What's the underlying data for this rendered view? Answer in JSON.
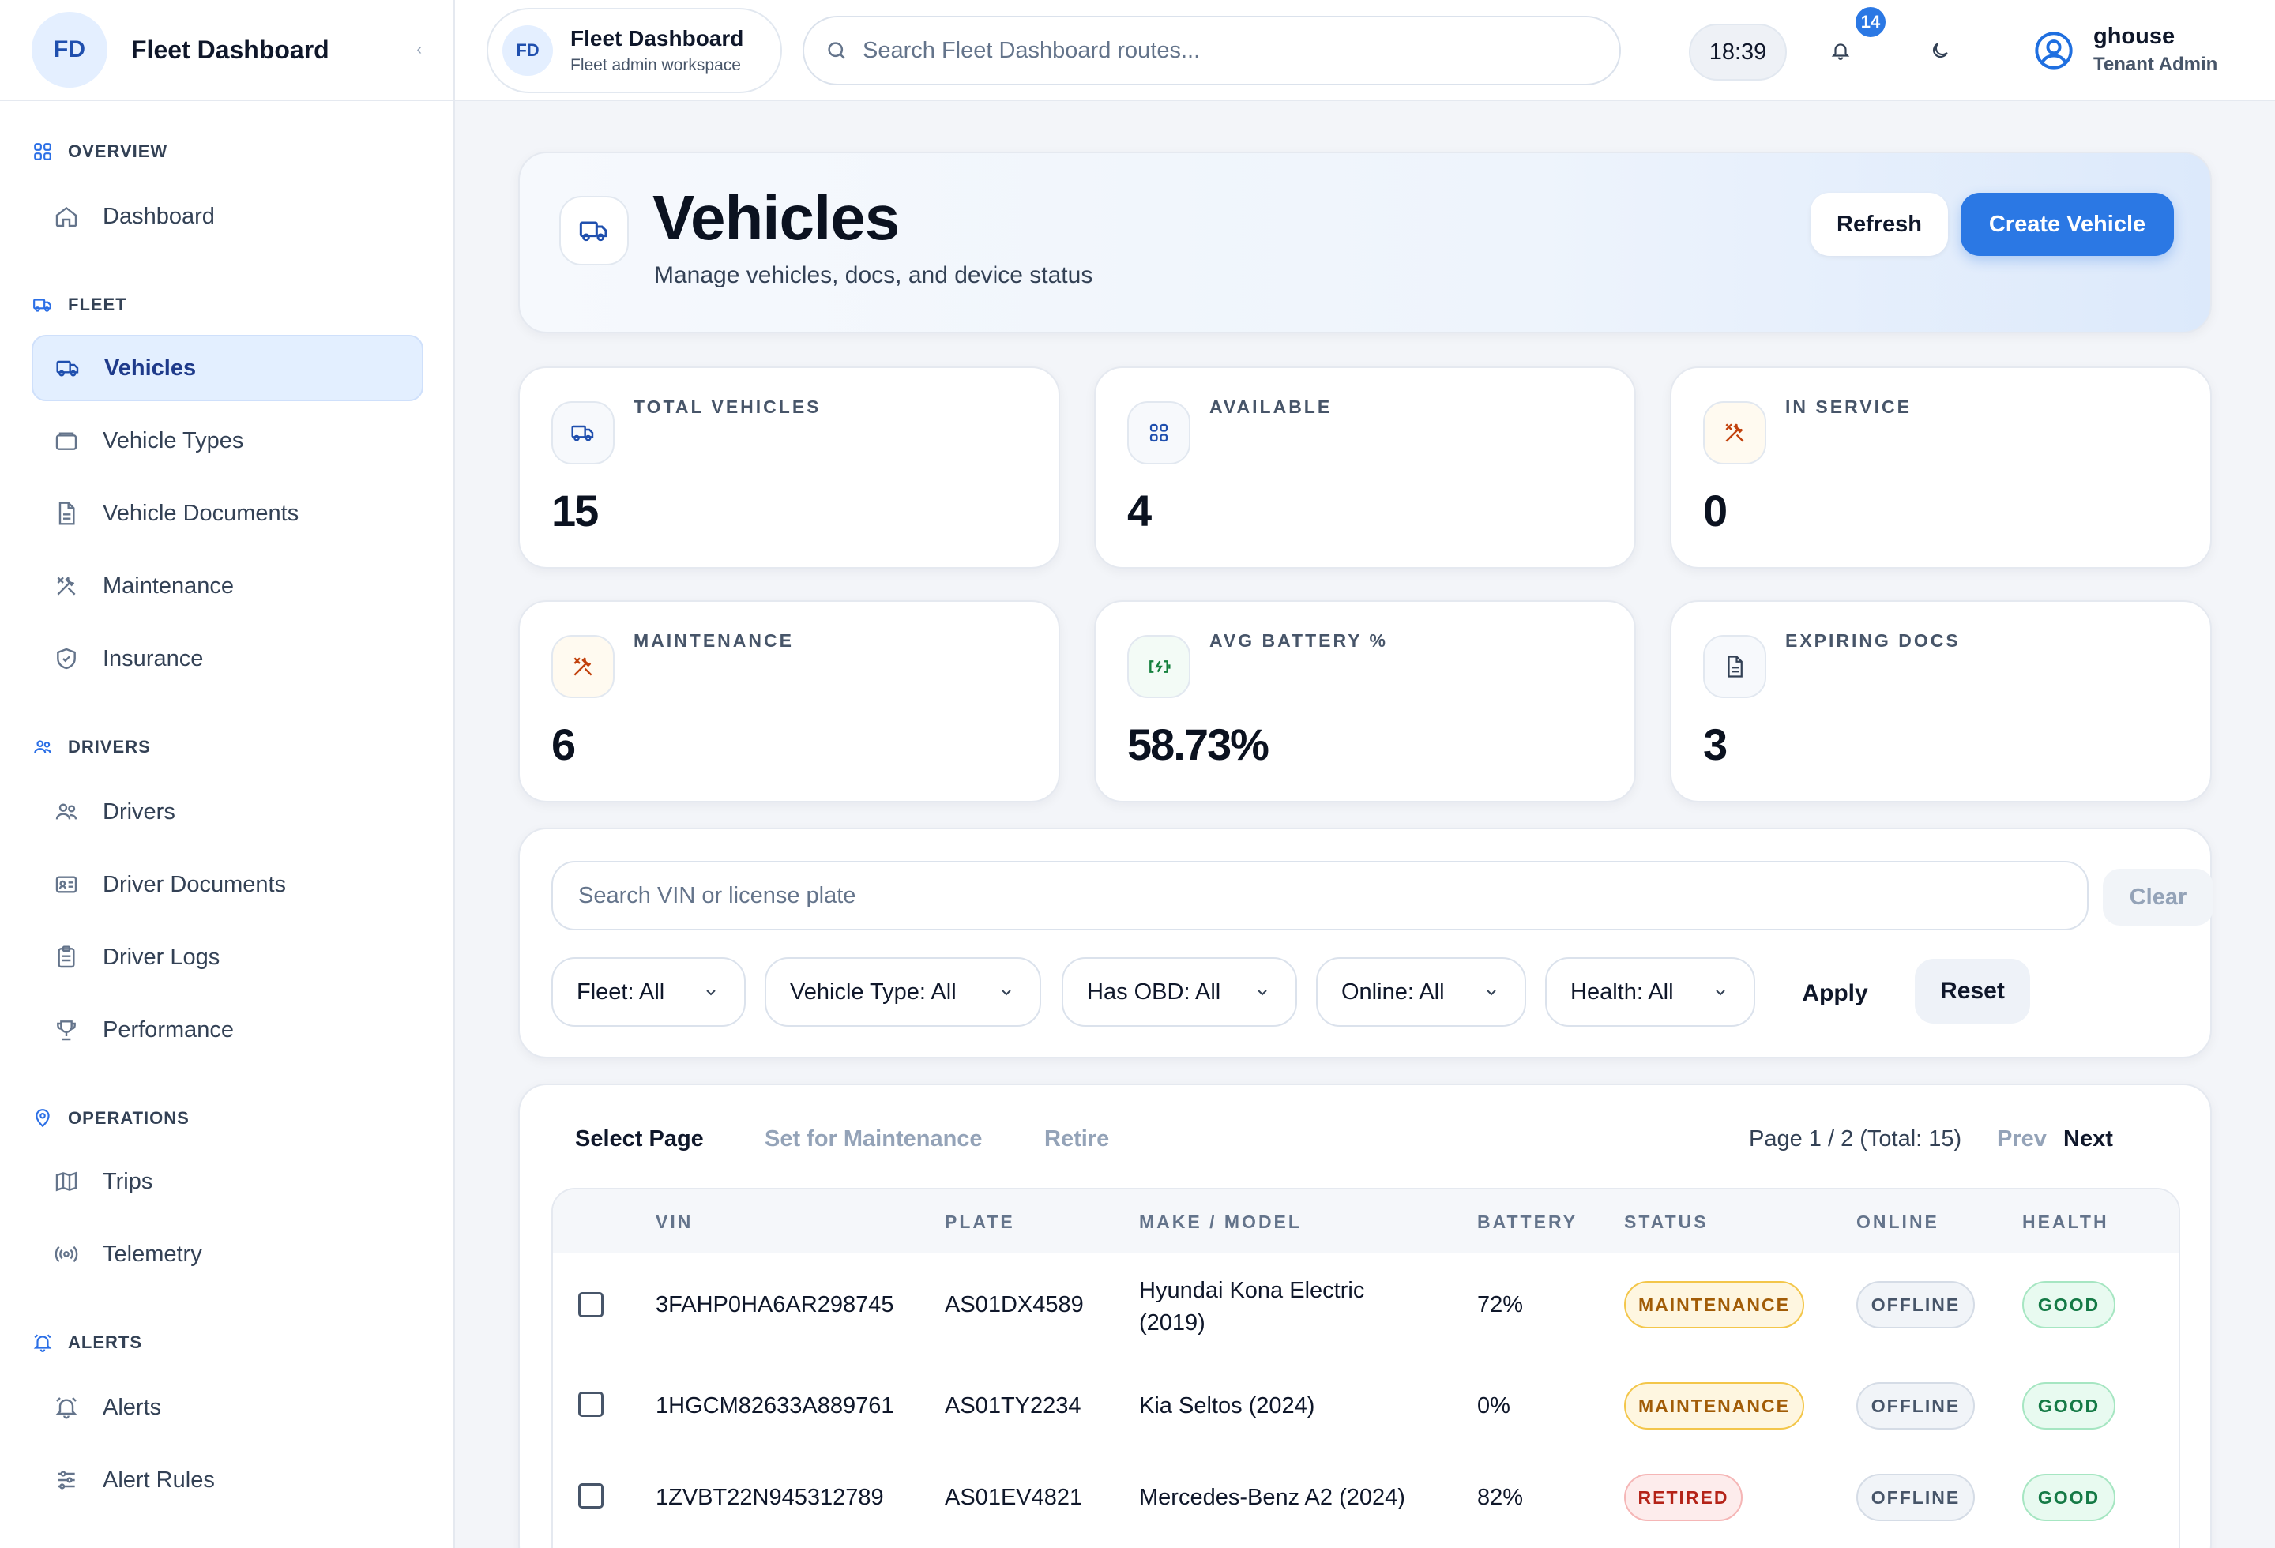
{
  "sidebar": {
    "brand_initials": "FD",
    "brand_title": "Fleet Dashboard",
    "collapse_icon": "chevron-left-icon",
    "sections": [
      {
        "title": "OVERVIEW",
        "icon": "grid-icon",
        "items": [
          {
            "label": "Dashboard",
            "icon": "home-icon"
          }
        ]
      },
      {
        "title": "FLEET",
        "icon": "truck-icon",
        "items": [
          {
            "label": "Vehicles",
            "icon": "truck-icon",
            "active": true
          },
          {
            "label": "Vehicle Types",
            "icon": "layers-icon"
          },
          {
            "label": "Vehicle Documents",
            "icon": "document-icon"
          },
          {
            "label": "Maintenance",
            "icon": "tools-icon"
          },
          {
            "label": "Insurance",
            "icon": "shield-icon"
          }
        ]
      },
      {
        "title": "DRIVERS",
        "icon": "users-icon",
        "items": [
          {
            "label": "Drivers",
            "icon": "users-icon"
          },
          {
            "label": "Driver Documents",
            "icon": "id-card-icon"
          },
          {
            "label": "Driver Logs",
            "icon": "clipboard-icon"
          },
          {
            "label": "Performance",
            "icon": "trophy-icon"
          }
        ]
      },
      {
        "title": "OPERATIONS",
        "icon": "map-pin-icon",
        "items": [
          {
            "label": "Trips",
            "icon": "map-icon"
          },
          {
            "label": "Telemetry",
            "icon": "radio-icon"
          }
        ]
      },
      {
        "title": "ALERTS",
        "icon": "alarm-icon",
        "items": [
          {
            "label": "Alerts",
            "icon": "alarm-icon"
          },
          {
            "label": "Alert Rules",
            "icon": "sliders-icon"
          }
        ]
      }
    ]
  },
  "topbar": {
    "workspace_initials": "FD",
    "workspace_title": "Fleet Dashboard",
    "workspace_subtitle": "Fleet admin workspace",
    "search_placeholder": "Search Fleet Dashboard routes...",
    "clock": "18:39",
    "notification_count": "14",
    "user_name": "ghouse",
    "user_role": "Tenant Admin"
  },
  "hero": {
    "title": "Vehicles",
    "subtitle": "Manage vehicles, docs, and device status",
    "refresh_label": "Refresh",
    "create_label": "Create Vehicle"
  },
  "stats": [
    {
      "label": "TOTAL VEHICLES",
      "value": "15",
      "icon": "truck-icon",
      "color": "#1f4fae"
    },
    {
      "label": "AVAILABLE",
      "value": "4",
      "icon": "grid-icon",
      "color": "#1f4fae"
    },
    {
      "label": "IN SERVICE",
      "value": "0",
      "icon": "tools-icon",
      "color": "#c2410c"
    },
    {
      "label": "MAINTENANCE",
      "value": "6",
      "icon": "tools-icon",
      "color": "#c2410c"
    },
    {
      "label": "AVG BATTERY %",
      "value": "58.73%",
      "icon": "battery-icon",
      "color": "#15803d"
    },
    {
      "label": "EXPIRING DOCS",
      "value": "3",
      "icon": "document-icon",
      "color": "#334155"
    }
  ],
  "filters": {
    "search_placeholder": "Search VIN or license plate",
    "clear_label": "Clear",
    "selects": [
      {
        "label": "Fleet: All"
      },
      {
        "label": "Vehicle Type: All"
      },
      {
        "label": "Has OBD: All"
      },
      {
        "label": "Online: All"
      },
      {
        "label": "Health: All"
      }
    ],
    "apply_label": "Apply",
    "reset_label": "Reset"
  },
  "table": {
    "actions": {
      "select_page": "Select Page",
      "set_maintenance": "Set for Maintenance",
      "retire": "Retire"
    },
    "pager": {
      "text": "Page 1 / 2 (Total: 15)",
      "prev": "Prev",
      "next": "Next"
    },
    "columns": {
      "vin": "VIN",
      "plate": "PLATE",
      "make_model": "MAKE / MODEL",
      "battery": "BATTERY",
      "status": "STATUS",
      "online": "ONLINE",
      "health": "HEALTH"
    },
    "rows": [
      {
        "vin": "3FAHP0HA6AR298745",
        "plate": "AS01DX4589",
        "make_line1": "Hyundai Kona Electric",
        "make_line2": "(2019)",
        "battery": "72%",
        "status": "MAINTENANCE",
        "online": "OFFLINE",
        "health": "GOOD"
      },
      {
        "vin": "1HGCM82633A889761",
        "plate": "AS01TY2234",
        "make_line1": "Kia Seltos (2024)",
        "make_line2": "",
        "battery": "0%",
        "status": "MAINTENANCE",
        "online": "OFFLINE",
        "health": "GOOD"
      },
      {
        "vin": "1ZVBT22N945312789",
        "plate": "AS01EV4821",
        "make_line1": "Mercedes-Benz A2 (2024)",
        "make_line2": "",
        "battery": "82%",
        "status": "RETIRED",
        "online": "OFFLINE",
        "health": "GOOD"
      }
    ]
  },
  "colors": {
    "accent": "#2b78e4",
    "active_bg": "#e3efff",
    "warning": "#a15c07",
    "danger": "#b42318",
    "success": "#157a46"
  }
}
